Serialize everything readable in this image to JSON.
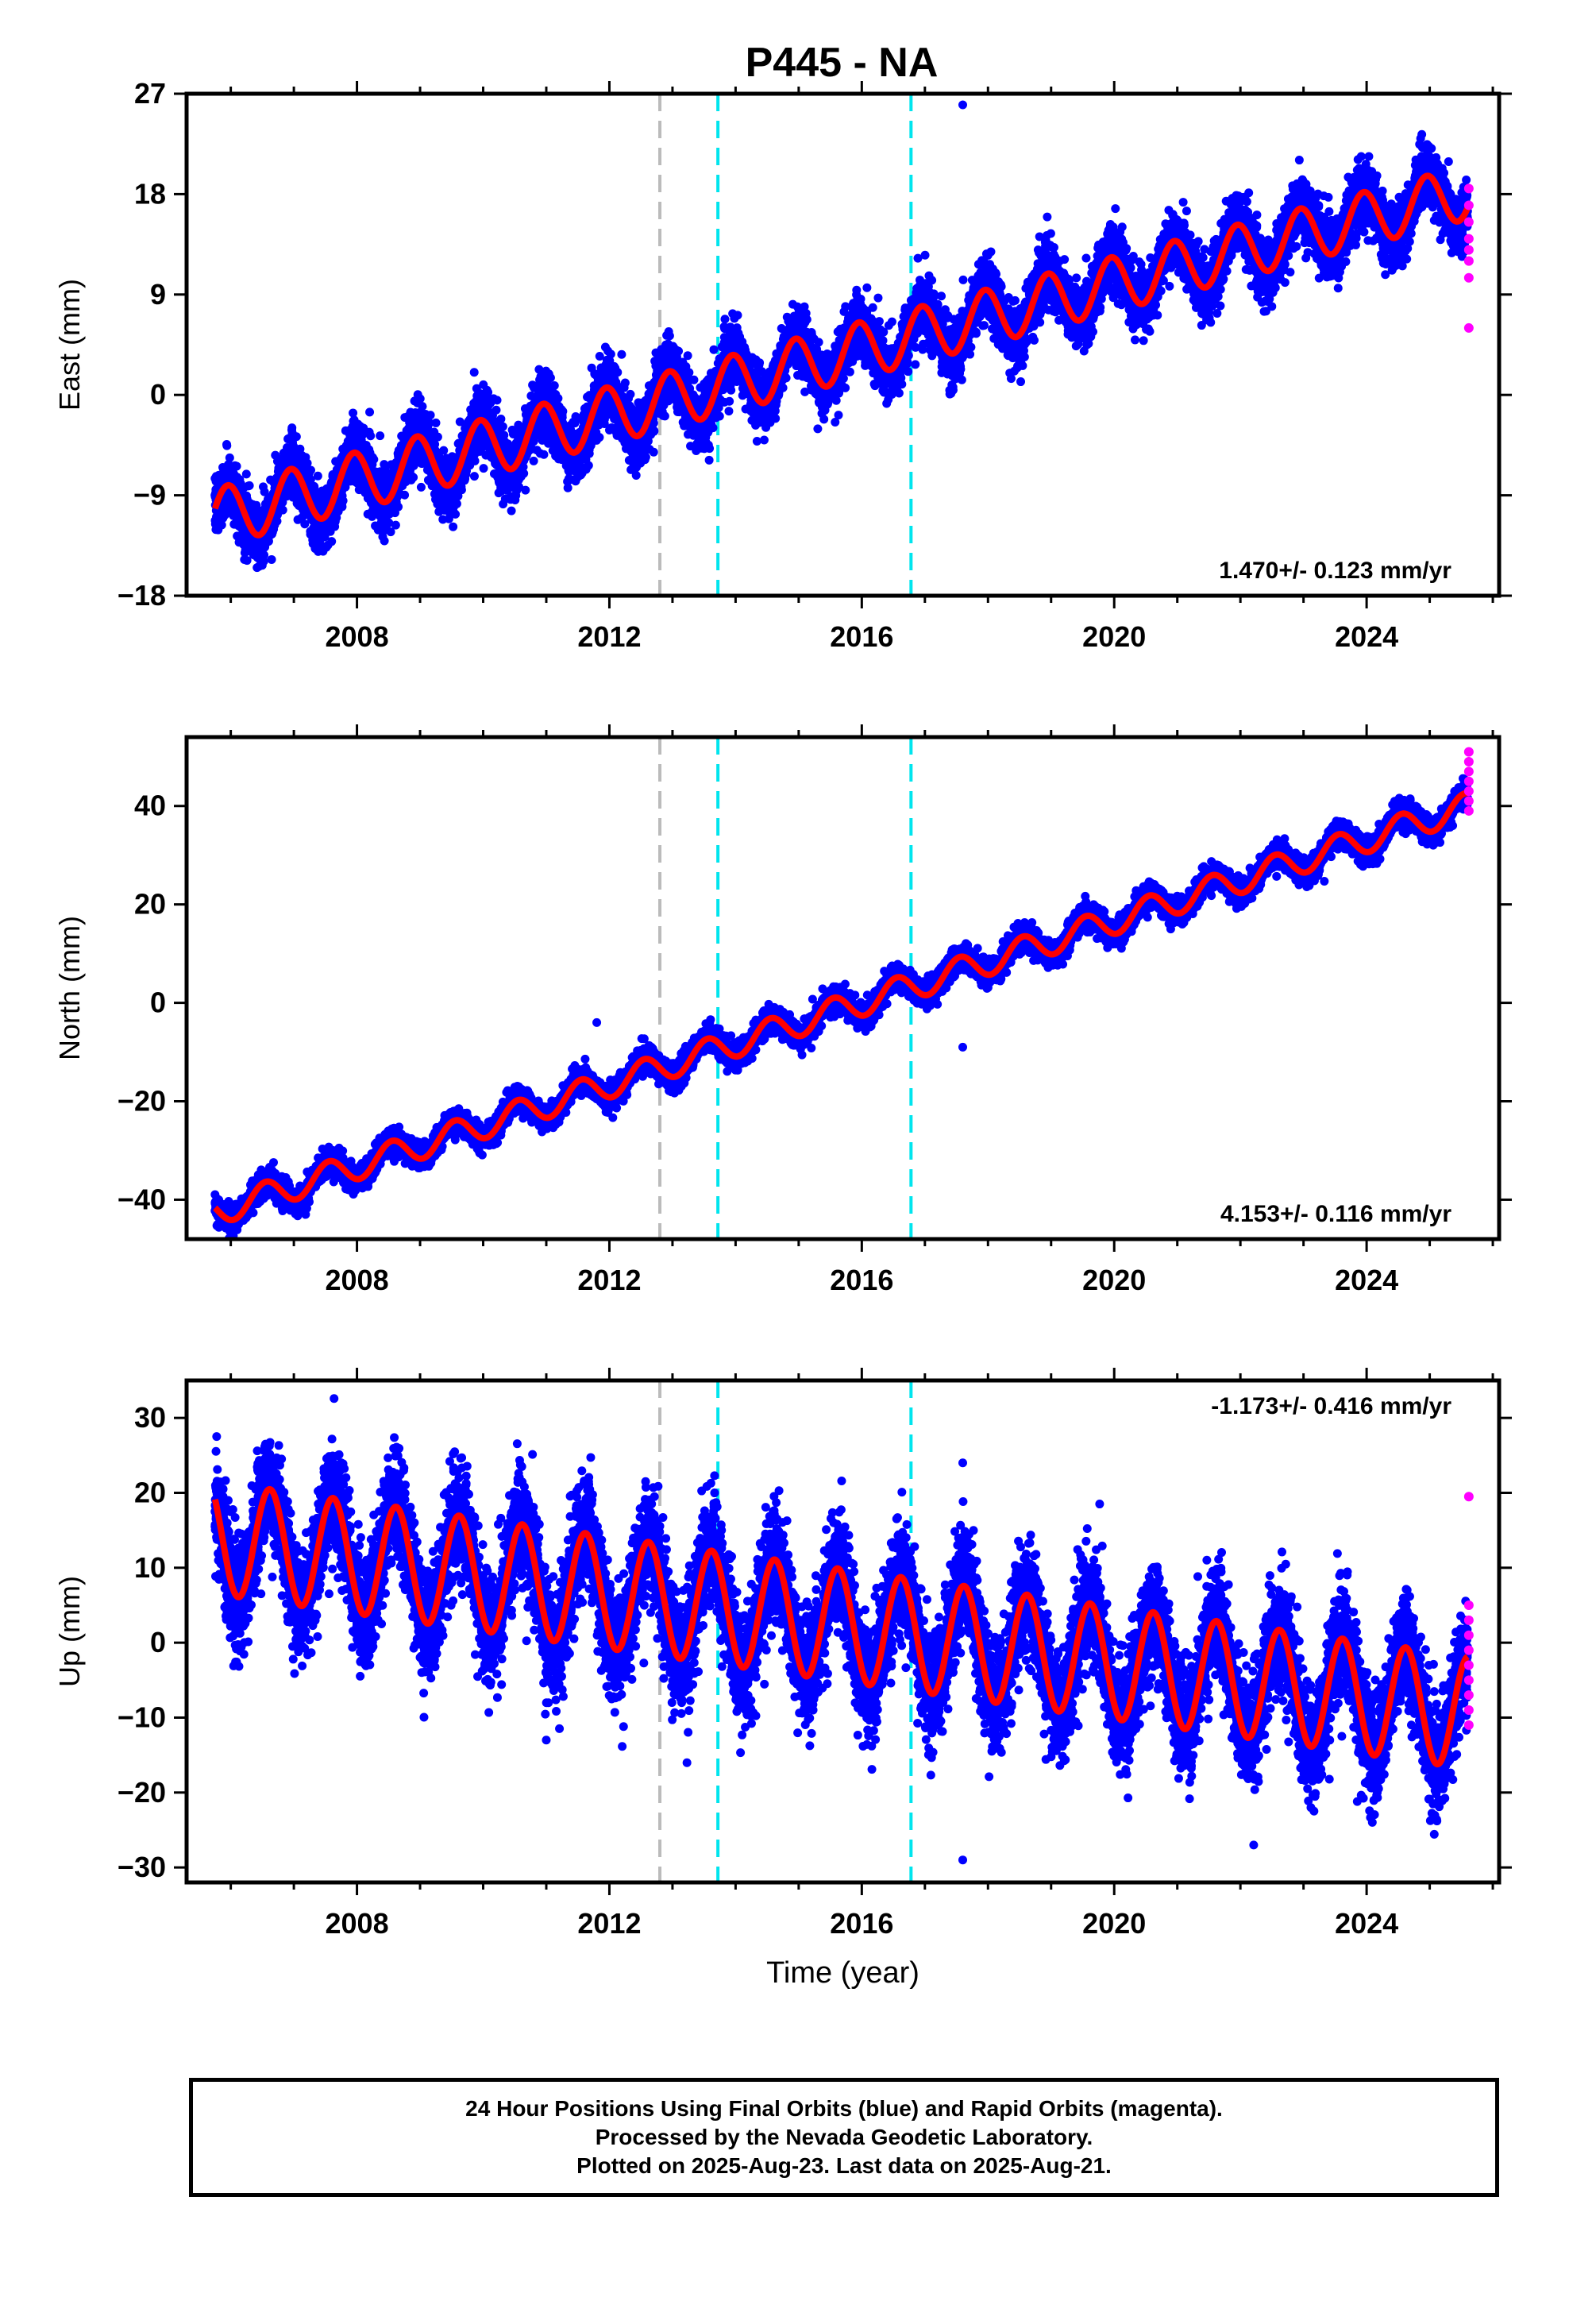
{
  "title": "P445 - NA",
  "colors": {
    "final_orbits": "#0000ff",
    "rapid_orbits": "#ff00ff",
    "model_fit": "#ff0000",
    "vline_gray": "#bbbbbb",
    "vline_cyan": "#00e5ee",
    "frame": "#000000"
  },
  "vertical_markers": [
    {
      "x": 2012.8,
      "color": "gray",
      "style": "dashed"
    },
    {
      "x": 2013.72,
      "color": "cyan",
      "style": "dashed"
    },
    {
      "x": 2016.78,
      "color": "cyan",
      "style": "dashed"
    }
  ],
  "chart_data": [
    {
      "type": "scatter",
      "component": "east",
      "ylabel": "East (mm)",
      "xlabel": "",
      "xlim": [
        2005.3,
        2026.1
      ],
      "ylim": [
        -18,
        27
      ],
      "yticks": [
        -18,
        -9,
        0,
        9,
        18,
        27
      ],
      "xticks": [
        2008,
        2012,
        2016,
        2020,
        2024
      ],
      "rate_label": "1.470+/- 0.123 mm/yr",
      "rate_position": "bottom-right",
      "model": {
        "start": 2005.75,
        "end": 2025.6,
        "anchor_year": 2005.75,
        "offset": -11.0,
        "rate_mm_per_yr": 1.47,
        "annual_amp": 2.4,
        "annual_phase_year": 0.95,
        "noise": 1.3,
        "amp_start": 2.6,
        "amp_end": 2.4
      },
      "rapid_values": [
        18.5,
        17,
        15.5,
        14,
        13,
        12,
        10.5,
        6
      ],
      "outliers": [
        {
          "x": 2017.6,
          "y": 26
        }
      ]
    },
    {
      "type": "scatter",
      "component": "north",
      "ylabel": "North (mm)",
      "xlabel": "",
      "xlim": [
        2005.3,
        2026.1
      ],
      "ylim": [
        -48,
        54
      ],
      "yticks": [
        -40,
        -20,
        0,
        20,
        40
      ],
      "xticks": [
        2008,
        2012,
        2016,
        2020,
        2024
      ],
      "rate_label": "4.153+/- 0.116 mm/yr",
      "rate_position": "bottom-right",
      "model": {
        "start": 2005.75,
        "end": 2025.6,
        "anchor_year": 2005.75,
        "offset": -42.5,
        "rate_mm_per_yr": 4.153,
        "annual_amp": 2.8,
        "annual_phase_year": 0.55,
        "noise": 1.2,
        "amp_start": 2.8,
        "amp_end": 2.8
      },
      "rapid_values": [
        51,
        49,
        47,
        45,
        43,
        41,
        39
      ],
      "outliers": [
        {
          "x": 2017.6,
          "y": -9
        },
        {
          "x": 2011.8,
          "y": -4
        }
      ]
    },
    {
      "type": "scatter",
      "component": "up",
      "ylabel": "Up (mm)",
      "xlabel": "Time (year)",
      "xlim": [
        2005.3,
        2026.1
      ],
      "ylim": [
        -32,
        35
      ],
      "yticks": [
        -30,
        -20,
        -10,
        0,
        10,
        20,
        30
      ],
      "xticks": [
        2008,
        2012,
        2016,
        2020,
        2024
      ],
      "rate_label": "-1.173+/- 0.416 mm/yr",
      "rate_position": "top-right",
      "model": {
        "start": 2005.75,
        "end": 2025.6,
        "anchor_year": 2005.75,
        "offset": 14.0,
        "rate_mm_per_yr": -1.173,
        "annual_amp": 7.5,
        "annual_phase_year": 0.62,
        "noise": 3.6,
        "amp_start": 7.5,
        "amp_end": 7.5
      },
      "rapid_values": [
        19.5,
        5,
        3,
        1,
        -1,
        -3,
        -5,
        -7,
        -9,
        -11
      ],
      "outliers": [
        {
          "x": 2017.6,
          "y": 24
        },
        {
          "x": 2011.0,
          "y": -13
        },
        {
          "x": 2017.6,
          "y": -29
        }
      ]
    }
  ],
  "footer": {
    "line1": "24 Hour Positions Using Final Orbits (blue) and Rapid Orbits (magenta).",
    "line2": "Processed by the Nevada Geodetic Laboratory.",
    "line3": "Plotted on 2025-Aug-23. Last data on 2025-Aug-21."
  }
}
